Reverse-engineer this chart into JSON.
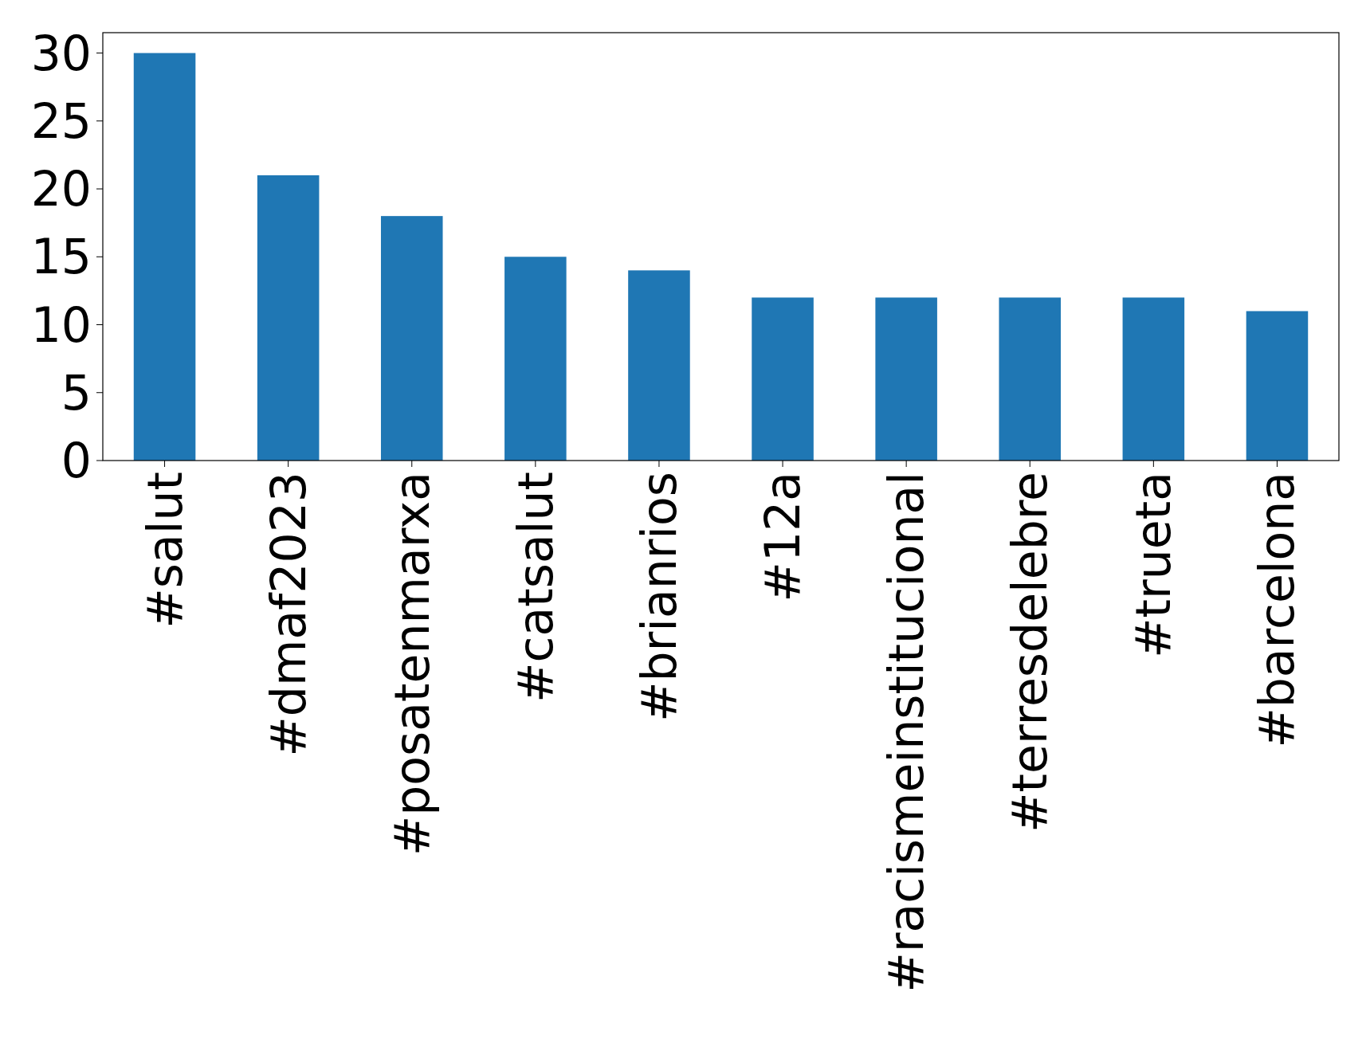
{
  "chart_data": {
    "type": "bar",
    "categories": [
      "#salut",
      "#dmaf2023",
      "#posatenmarxa",
      "#catsalut",
      "#brianrios",
      "#12a",
      "#racismeinstitucional",
      "#terresdelebre",
      "#trueta",
      "#barcelona"
    ],
    "values": [
      30,
      21,
      18,
      15,
      14,
      12,
      12,
      12,
      12,
      11
    ],
    "color": "#1f77b4",
    "ylim": [
      0,
      31.5
    ],
    "yticks": [
      0,
      5,
      10,
      15,
      20,
      25,
      30
    ],
    "grid": false
  }
}
